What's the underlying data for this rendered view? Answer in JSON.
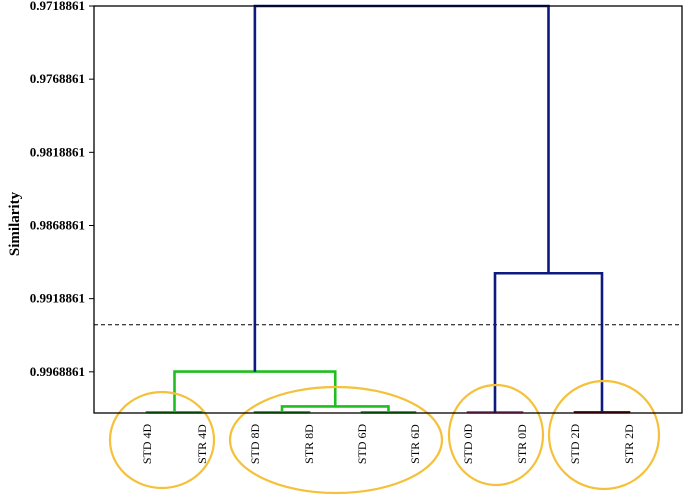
{
  "chart_data": {
    "type": "dendrogram",
    "ylabel": "Similarity",
    "y_ticks": [
      "0.9718861",
      "0.9768861",
      "0.9818861",
      "0.9868861",
      "0.9918861",
      "0.9968861"
    ],
    "ylim": [
      0.9718861,
      0.9997
    ],
    "leaves": [
      "STD 4D",
      "STR 4D",
      "STD 8D",
      "STR 8D",
      "STD 6D",
      "STR 6D",
      "STD 0D",
      "STR 0D",
      "STD 2D",
      "STR 2D"
    ],
    "merges": [
      {
        "left": "STD 4D",
        "right": "STR 4D",
        "height": 0.99965,
        "color": "#1fbf1f"
      },
      {
        "left": "STD 8D",
        "right": "STR 8D",
        "height": 0.99965,
        "color": "#1fbf1f"
      },
      {
        "left": "STD 6D",
        "right": "STR 6D",
        "height": 0.99965,
        "color": "#1fbf1f"
      },
      {
        "left": "STD 0D",
        "right": "STR 0D",
        "height": 0.99965,
        "color": "#d63cb0"
      },
      {
        "left": "STD 2D",
        "right": "STR 2D",
        "height": 0.99965,
        "color": "#8b0a0a"
      },
      {
        "left": "STD 8D + STR 8D",
        "right": "STD 6D + STR 6D",
        "height": 0.99925,
        "color": "#1fbf1f"
      },
      {
        "left": "4D cluster",
        "right": "8D/6D cluster",
        "height": 0.99687,
        "color": "#1fbf1f"
      },
      {
        "left": "0D cluster",
        "right": "2D cluster",
        "height": 0.99015,
        "color": "#0d1a80"
      },
      {
        "left": "4D/8D/6D cluster",
        "right": "0D/2D cluster",
        "height": 0.9718861,
        "color": "#0d1a80"
      }
    ],
    "cut_line": 0.99367,
    "groups": [
      "4D",
      "8D+6D",
      "0D",
      "2D"
    ],
    "colors": {
      "green": "#1fbf1f",
      "navy": "#0d1a80",
      "magenta": "#d63cb0",
      "darkred": "#8b0a0a",
      "circle": "#f5c13a"
    }
  }
}
